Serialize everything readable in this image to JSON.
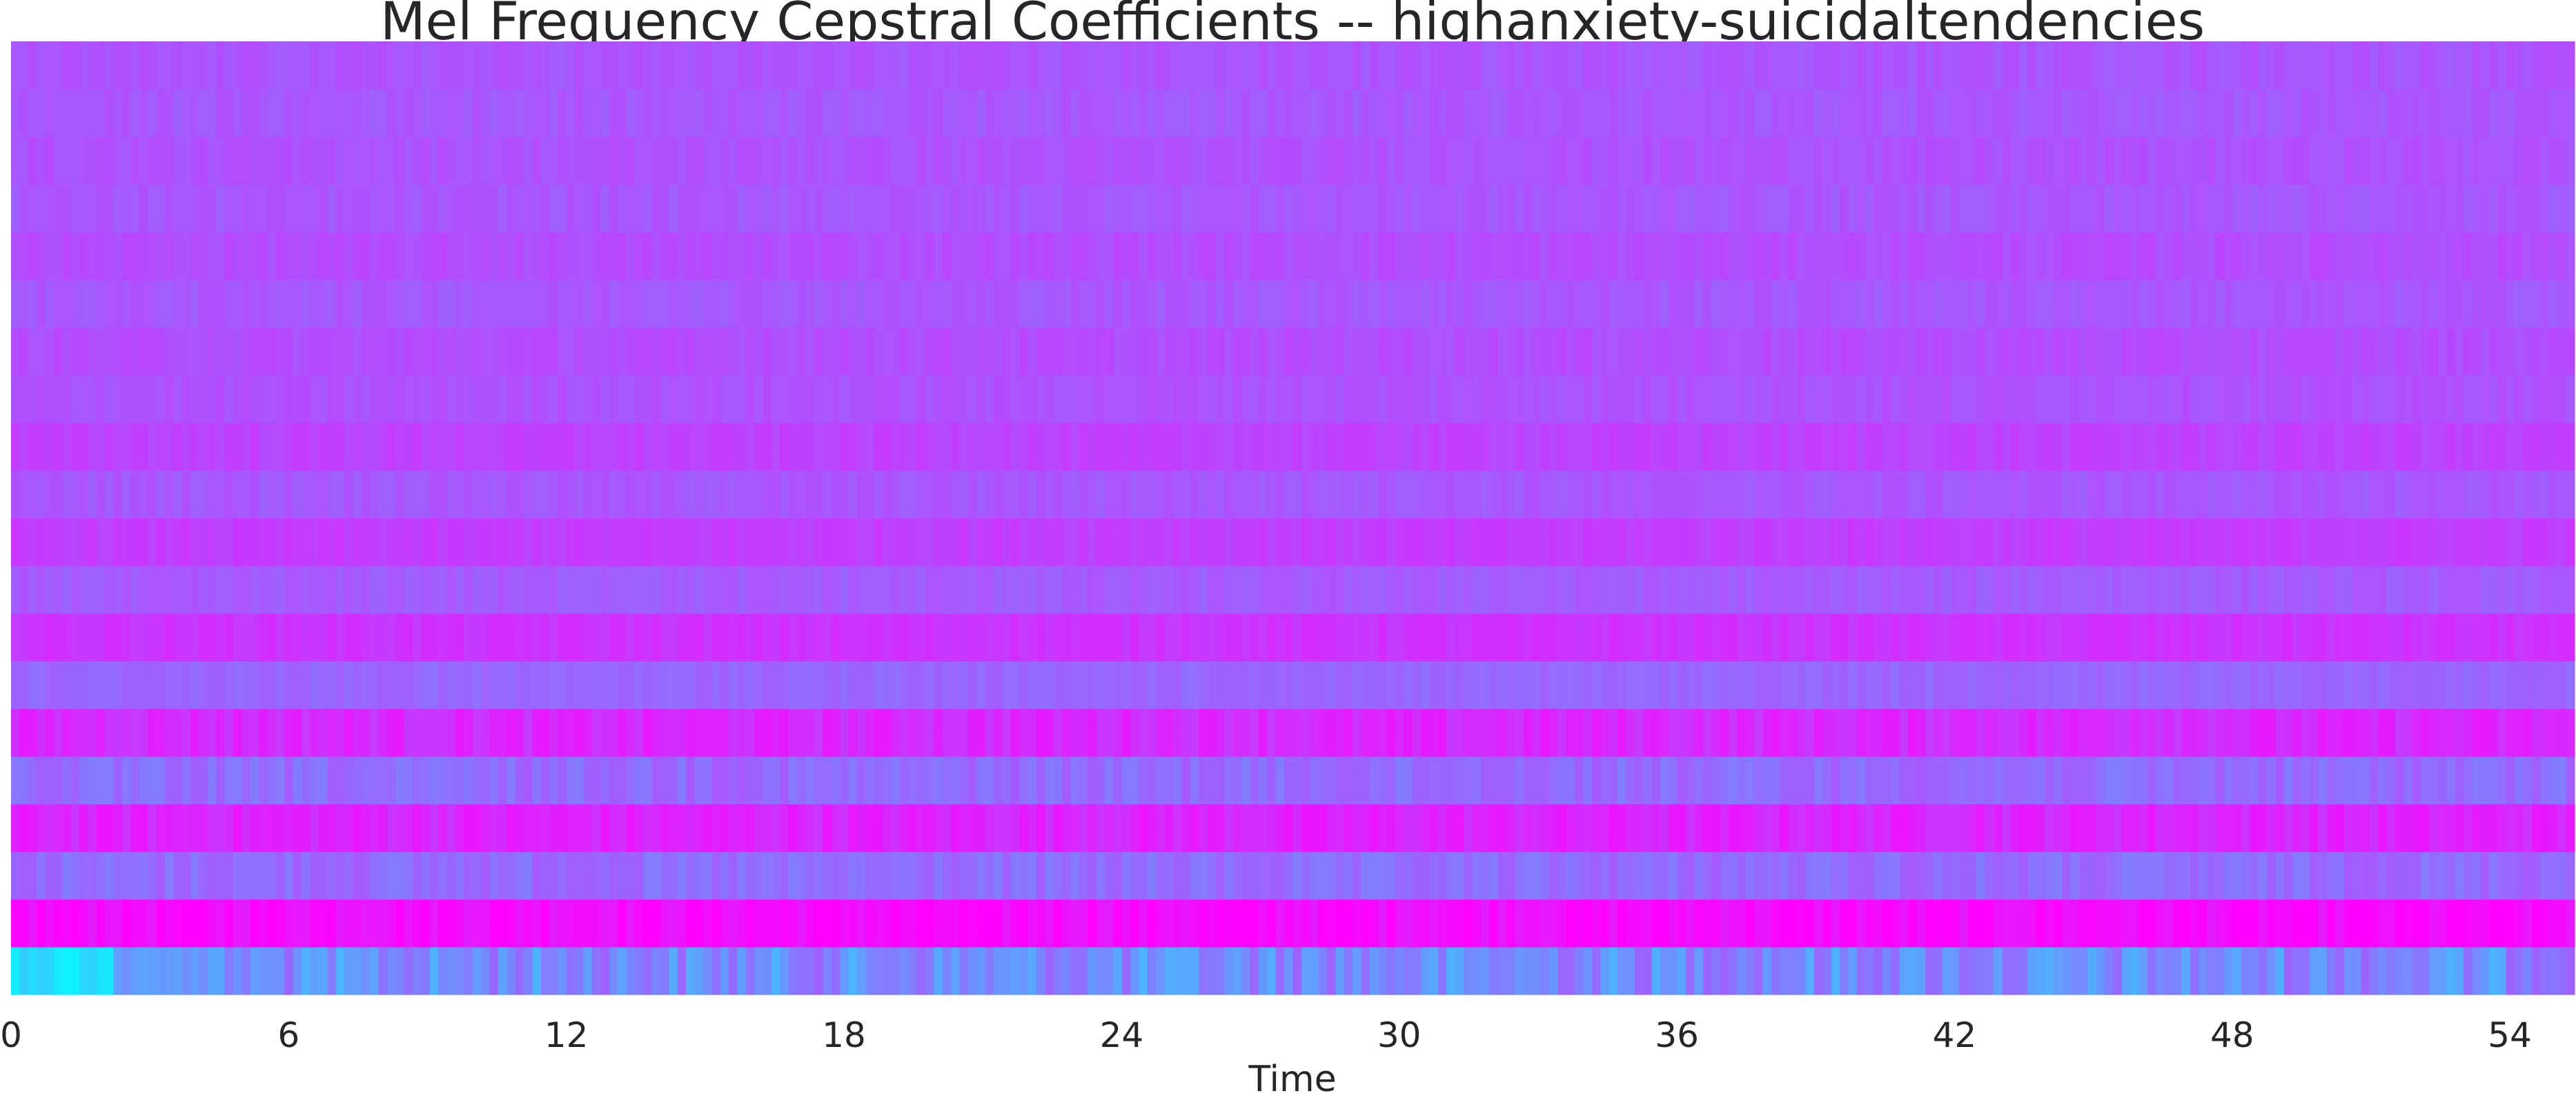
{
  "chart_data": {
    "type": "heatmap",
    "title": "Mel Frequency Cepstral Coefficients -- highanxiety-suicidaltendencies",
    "xlabel": "Time",
    "ylabel": "",
    "colormap": "cool",
    "colormap_endpoints": [
      "#00ffff",
      "#ff00ff"
    ],
    "xlim": [
      0,
      55.4
    ],
    "x_ticks": [
      0,
      6,
      12,
      18,
      24,
      30,
      36,
      42,
      48,
      54
    ],
    "x_tick_labels": [
      "0",
      "6",
      "12",
      "18",
      "24",
      "30",
      "36",
      "42",
      "48",
      "54"
    ],
    "coefficient_count": 20,
    "grid": false,
    "legend": "none",
    "row_mean_values_bottom_to_top": [
      0.46,
      0.96,
      0.58,
      0.86,
      0.58,
      0.84,
      0.6,
      0.8,
      0.64,
      0.76,
      0.66,
      0.74,
      0.68,
      0.7,
      0.66,
      0.7,
      0.66,
      0.68,
      0.66,
      0.67
    ]
  }
}
